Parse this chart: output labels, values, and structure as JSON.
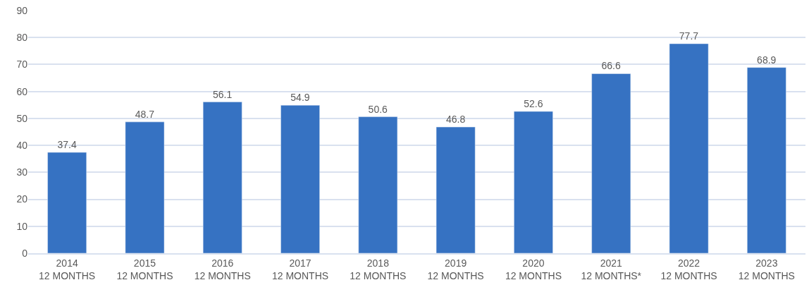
{
  "chart_data": {
    "type": "bar",
    "categories": [
      "2014\n12 MONTHS",
      "2015\n12 MONTHS",
      "2016\n12 MONTHS",
      "2017\n12 MONTHS",
      "2018\n12 MONTHS",
      "2019\n12 MONTHS",
      "2020\n12 MONTHS",
      "2021\n12 MONTHS*",
      "2022\n12 MONTHS",
      "2023\n12 MONTHS"
    ],
    "values": [
      37.4,
      48.7,
      56.1,
      54.9,
      50.6,
      46.8,
      52.6,
      66.6,
      77.7,
      68.9
    ],
    "color": "#3672c2",
    "ylim": [
      0,
      90
    ],
    "yticks": [
      0,
      10,
      20,
      30,
      40,
      50,
      60,
      70,
      80,
      90
    ],
    "grid": "y",
    "data_labels": true,
    "legend": false
  }
}
